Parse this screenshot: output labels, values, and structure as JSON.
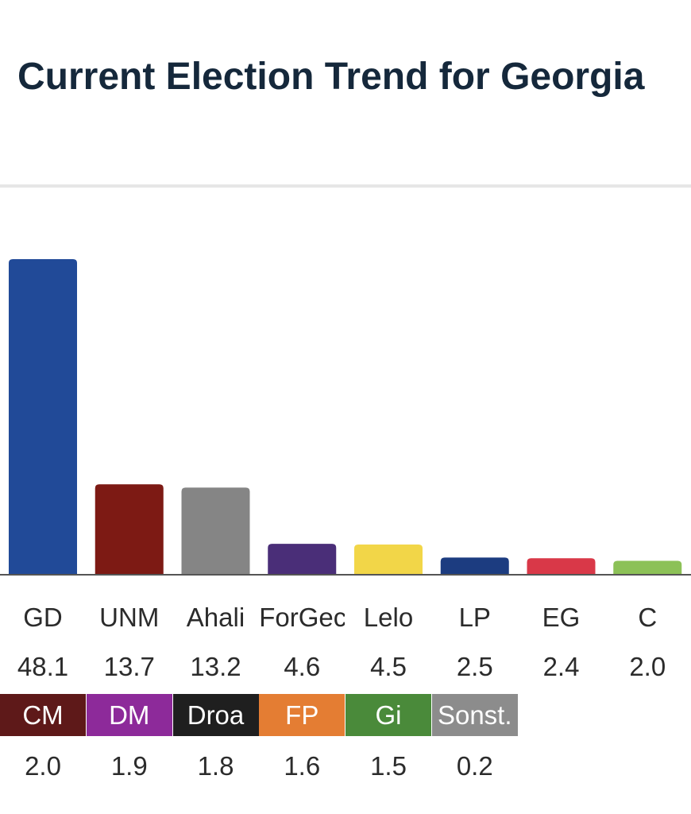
{
  "title": "Current Election Trend for Georgia",
  "chart_data": {
    "type": "bar",
    "categories": [
      "GD",
      "UNM",
      "Ahali",
      "ForGec",
      "Lelo",
      "LP",
      "EG",
      "C"
    ],
    "values": [
      48.1,
      13.7,
      13.2,
      4.6,
      4.5,
      2.5,
      2.4,
      2.0
    ],
    "colors": [
      "#214a98",
      "#7d1a14",
      "#858585",
      "#4a2e78",
      "#f2d648",
      "#1c3c80",
      "#d93848",
      "#8cc157"
    ],
    "value_labels": [
      "48.1",
      "13.7",
      "13.2",
      "4.6",
      "4.5",
      "2.5",
      "2.4",
      "2.0"
    ],
    "others": [
      {
        "label": "CM",
        "value": "2.0",
        "color": "#5e1919"
      },
      {
        "label": "DM",
        "value": "1.9",
        "color": "#8d2a9a"
      },
      {
        "label": "Droa",
        "value": "1.8",
        "color": "#1f1f1f"
      },
      {
        "label": "FP",
        "value": "1.6",
        "color": "#e47d33"
      },
      {
        "label": "Gi",
        "value": "1.5",
        "color": "#4a8a3a"
      },
      {
        "label": "Sonst.",
        "value": "0.2",
        "color": "#8c8c8c"
      }
    ]
  }
}
